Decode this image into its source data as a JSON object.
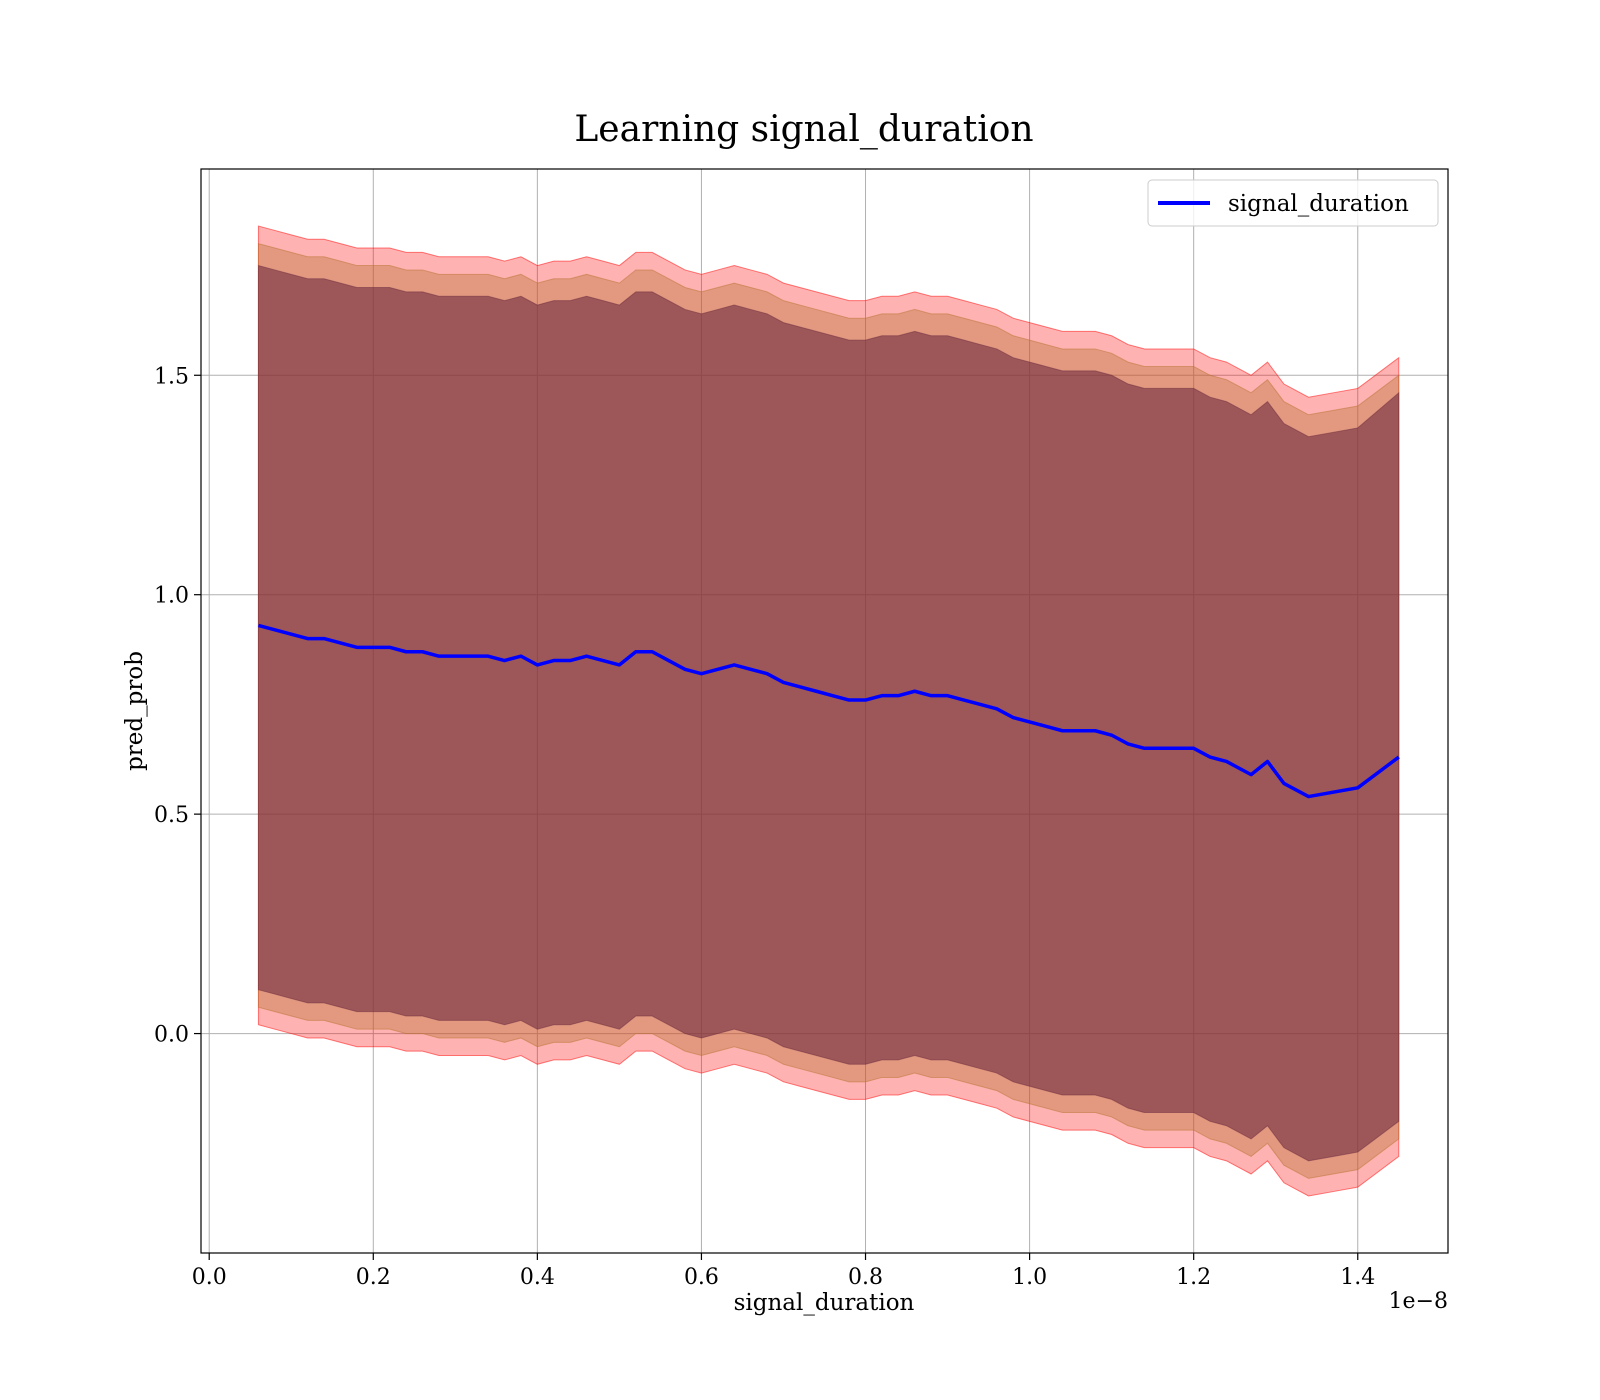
{
  "chart_data": {
    "type": "line",
    "title": "Learning signal_duration",
    "xlabel": "signal_duration",
    "ylabel": "pred_prob",
    "x_offset_label": "1e−8",
    "xlim": [
      -0.01,
      1.51
    ],
    "ylim": [
      -0.5,
      1.97
    ],
    "x_ticks": [
      0.0,
      0.2,
      0.4,
      0.6,
      0.8,
      1.0,
      1.2,
      1.4
    ],
    "x_tick_labels": [
      "0.0",
      "0.2",
      "0.4",
      "0.6",
      "0.8",
      "1.0",
      "1.2",
      "1.4"
    ],
    "y_ticks": [
      0.0,
      0.5,
      1.0,
      1.5
    ],
    "y_tick_labels": [
      "0.0",
      "0.5",
      "1.0",
      "1.5"
    ],
    "grid": true,
    "legend_position": "top-right",
    "colors": {
      "line": "#0000ff",
      "band_outer": "#ff0000",
      "band_middle": "#b87333",
      "band_inner": "#6e2b40"
    },
    "series": [
      {
        "name": "signal_duration",
        "x": [
          0.06,
          0.08,
          0.1,
          0.12,
          0.14,
          0.16,
          0.18,
          0.2,
          0.22,
          0.24,
          0.26,
          0.28,
          0.3,
          0.32,
          0.34,
          0.36,
          0.38,
          0.4,
          0.42,
          0.44,
          0.46,
          0.48,
          0.5,
          0.52,
          0.54,
          0.56,
          0.58,
          0.6,
          0.62,
          0.64,
          0.66,
          0.68,
          0.7,
          0.72,
          0.74,
          0.76,
          0.78,
          0.8,
          0.82,
          0.84,
          0.86,
          0.88,
          0.9,
          0.92,
          0.94,
          0.96,
          0.98,
          1.0,
          1.02,
          1.04,
          1.06,
          1.08,
          1.1,
          1.12,
          1.14,
          1.16,
          1.18,
          1.2,
          1.22,
          1.24,
          1.27,
          1.29,
          1.31,
          1.34,
          1.37,
          1.4,
          1.45
        ],
        "y": [
          0.93,
          0.92,
          0.91,
          0.9,
          0.9,
          0.89,
          0.88,
          0.88,
          0.88,
          0.87,
          0.87,
          0.86,
          0.86,
          0.86,
          0.86,
          0.85,
          0.86,
          0.84,
          0.85,
          0.85,
          0.86,
          0.85,
          0.84,
          0.87,
          0.87,
          0.85,
          0.83,
          0.82,
          0.83,
          0.84,
          0.83,
          0.82,
          0.8,
          0.79,
          0.78,
          0.77,
          0.76,
          0.76,
          0.77,
          0.77,
          0.78,
          0.77,
          0.77,
          0.76,
          0.75,
          0.74,
          0.72,
          0.71,
          0.7,
          0.69,
          0.69,
          0.69,
          0.68,
          0.66,
          0.65,
          0.65,
          0.65,
          0.65,
          0.63,
          0.62,
          0.59,
          0.62,
          0.57,
          0.54,
          0.55,
          0.56,
          0.63
        ]
      }
    ],
    "bands": [
      {
        "role": "outer",
        "upper": [
          1.84,
          1.83,
          1.82,
          1.81,
          1.81,
          1.8,
          1.79,
          1.79,
          1.79,
          1.78,
          1.78,
          1.77,
          1.77,
          1.77,
          1.77,
          1.76,
          1.77,
          1.75,
          1.76,
          1.76,
          1.77,
          1.76,
          1.75,
          1.78,
          1.78,
          1.76,
          1.74,
          1.73,
          1.74,
          1.75,
          1.74,
          1.73,
          1.71,
          1.7,
          1.69,
          1.68,
          1.67,
          1.67,
          1.68,
          1.68,
          1.69,
          1.68,
          1.68,
          1.67,
          1.66,
          1.65,
          1.63,
          1.62,
          1.61,
          1.6,
          1.6,
          1.6,
          1.59,
          1.57,
          1.56,
          1.56,
          1.56,
          1.56,
          1.54,
          1.53,
          1.5,
          1.53,
          1.48,
          1.45,
          1.46,
          1.47,
          1.54
        ],
        "lower": [
          0.02,
          0.01,
          0.0,
          -0.01,
          -0.01,
          -0.02,
          -0.03,
          -0.03,
          -0.03,
          -0.04,
          -0.04,
          -0.05,
          -0.05,
          -0.05,
          -0.05,
          -0.06,
          -0.05,
          -0.07,
          -0.06,
          -0.06,
          -0.05,
          -0.06,
          -0.07,
          -0.04,
          -0.04,
          -0.06,
          -0.08,
          -0.09,
          -0.08,
          -0.07,
          -0.08,
          -0.09,
          -0.11,
          -0.12,
          -0.13,
          -0.14,
          -0.15,
          -0.15,
          -0.14,
          -0.14,
          -0.13,
          -0.14,
          -0.14,
          -0.15,
          -0.16,
          -0.17,
          -0.19,
          -0.2,
          -0.21,
          -0.22,
          -0.22,
          -0.22,
          -0.23,
          -0.25,
          -0.26,
          -0.26,
          -0.26,
          -0.26,
          -0.28,
          -0.29,
          -0.32,
          -0.29,
          -0.34,
          -0.37,
          -0.36,
          -0.35,
          -0.28
        ]
      },
      {
        "role": "middle",
        "upper": [
          1.8,
          1.79,
          1.78,
          1.77,
          1.77,
          1.76,
          1.75,
          1.75,
          1.75,
          1.74,
          1.74,
          1.73,
          1.73,
          1.73,
          1.73,
          1.72,
          1.73,
          1.71,
          1.72,
          1.72,
          1.73,
          1.72,
          1.71,
          1.74,
          1.74,
          1.72,
          1.7,
          1.69,
          1.7,
          1.71,
          1.7,
          1.69,
          1.67,
          1.66,
          1.65,
          1.64,
          1.63,
          1.63,
          1.64,
          1.64,
          1.65,
          1.64,
          1.64,
          1.63,
          1.62,
          1.61,
          1.59,
          1.58,
          1.57,
          1.56,
          1.56,
          1.56,
          1.55,
          1.53,
          1.52,
          1.52,
          1.52,
          1.52,
          1.5,
          1.49,
          1.46,
          1.49,
          1.44,
          1.41,
          1.42,
          1.43,
          1.5
        ],
        "lower": [
          0.06,
          0.05,
          0.04,
          0.03,
          0.03,
          0.02,
          0.01,
          0.01,
          0.01,
          0.0,
          0.0,
          -0.01,
          -0.01,
          -0.01,
          -0.01,
          -0.02,
          -0.01,
          -0.03,
          -0.02,
          -0.02,
          -0.01,
          -0.02,
          -0.03,
          0.0,
          0.0,
          -0.02,
          -0.04,
          -0.05,
          -0.04,
          -0.03,
          -0.04,
          -0.05,
          -0.07,
          -0.08,
          -0.09,
          -0.1,
          -0.11,
          -0.11,
          -0.1,
          -0.1,
          -0.09,
          -0.1,
          -0.1,
          -0.11,
          -0.12,
          -0.13,
          -0.15,
          -0.16,
          -0.17,
          -0.18,
          -0.18,
          -0.18,
          -0.19,
          -0.21,
          -0.22,
          -0.22,
          -0.22,
          -0.22,
          -0.24,
          -0.25,
          -0.28,
          -0.25,
          -0.3,
          -0.33,
          -0.32,
          -0.31,
          -0.24
        ]
      },
      {
        "role": "inner",
        "upper": [
          1.75,
          1.74,
          1.73,
          1.72,
          1.72,
          1.71,
          1.7,
          1.7,
          1.7,
          1.69,
          1.69,
          1.68,
          1.68,
          1.68,
          1.68,
          1.67,
          1.68,
          1.66,
          1.67,
          1.67,
          1.68,
          1.67,
          1.66,
          1.69,
          1.69,
          1.67,
          1.65,
          1.64,
          1.65,
          1.66,
          1.65,
          1.64,
          1.62,
          1.61,
          1.6,
          1.59,
          1.58,
          1.58,
          1.59,
          1.59,
          1.6,
          1.59,
          1.59,
          1.58,
          1.57,
          1.56,
          1.54,
          1.53,
          1.52,
          1.51,
          1.51,
          1.51,
          1.5,
          1.48,
          1.47,
          1.47,
          1.47,
          1.47,
          1.45,
          1.44,
          1.41,
          1.44,
          1.39,
          1.36,
          1.37,
          1.38,
          1.46
        ],
        "lower": [
          0.1,
          0.09,
          0.08,
          0.07,
          0.07,
          0.06,
          0.05,
          0.05,
          0.05,
          0.04,
          0.04,
          0.03,
          0.03,
          0.03,
          0.03,
          0.02,
          0.03,
          0.01,
          0.02,
          0.02,
          0.03,
          0.02,
          0.01,
          0.04,
          0.04,
          0.02,
          0.0,
          -0.01,
          0.0,
          0.01,
          0.0,
          -0.01,
          -0.03,
          -0.04,
          -0.05,
          -0.06,
          -0.07,
          -0.07,
          -0.06,
          -0.06,
          -0.05,
          -0.06,
          -0.06,
          -0.07,
          -0.08,
          -0.09,
          -0.11,
          -0.12,
          -0.13,
          -0.14,
          -0.14,
          -0.14,
          -0.15,
          -0.17,
          -0.18,
          -0.18,
          -0.18,
          -0.18,
          -0.2,
          -0.21,
          -0.24,
          -0.21,
          -0.26,
          -0.29,
          -0.28,
          -0.27,
          -0.2
        ]
      }
    ]
  }
}
